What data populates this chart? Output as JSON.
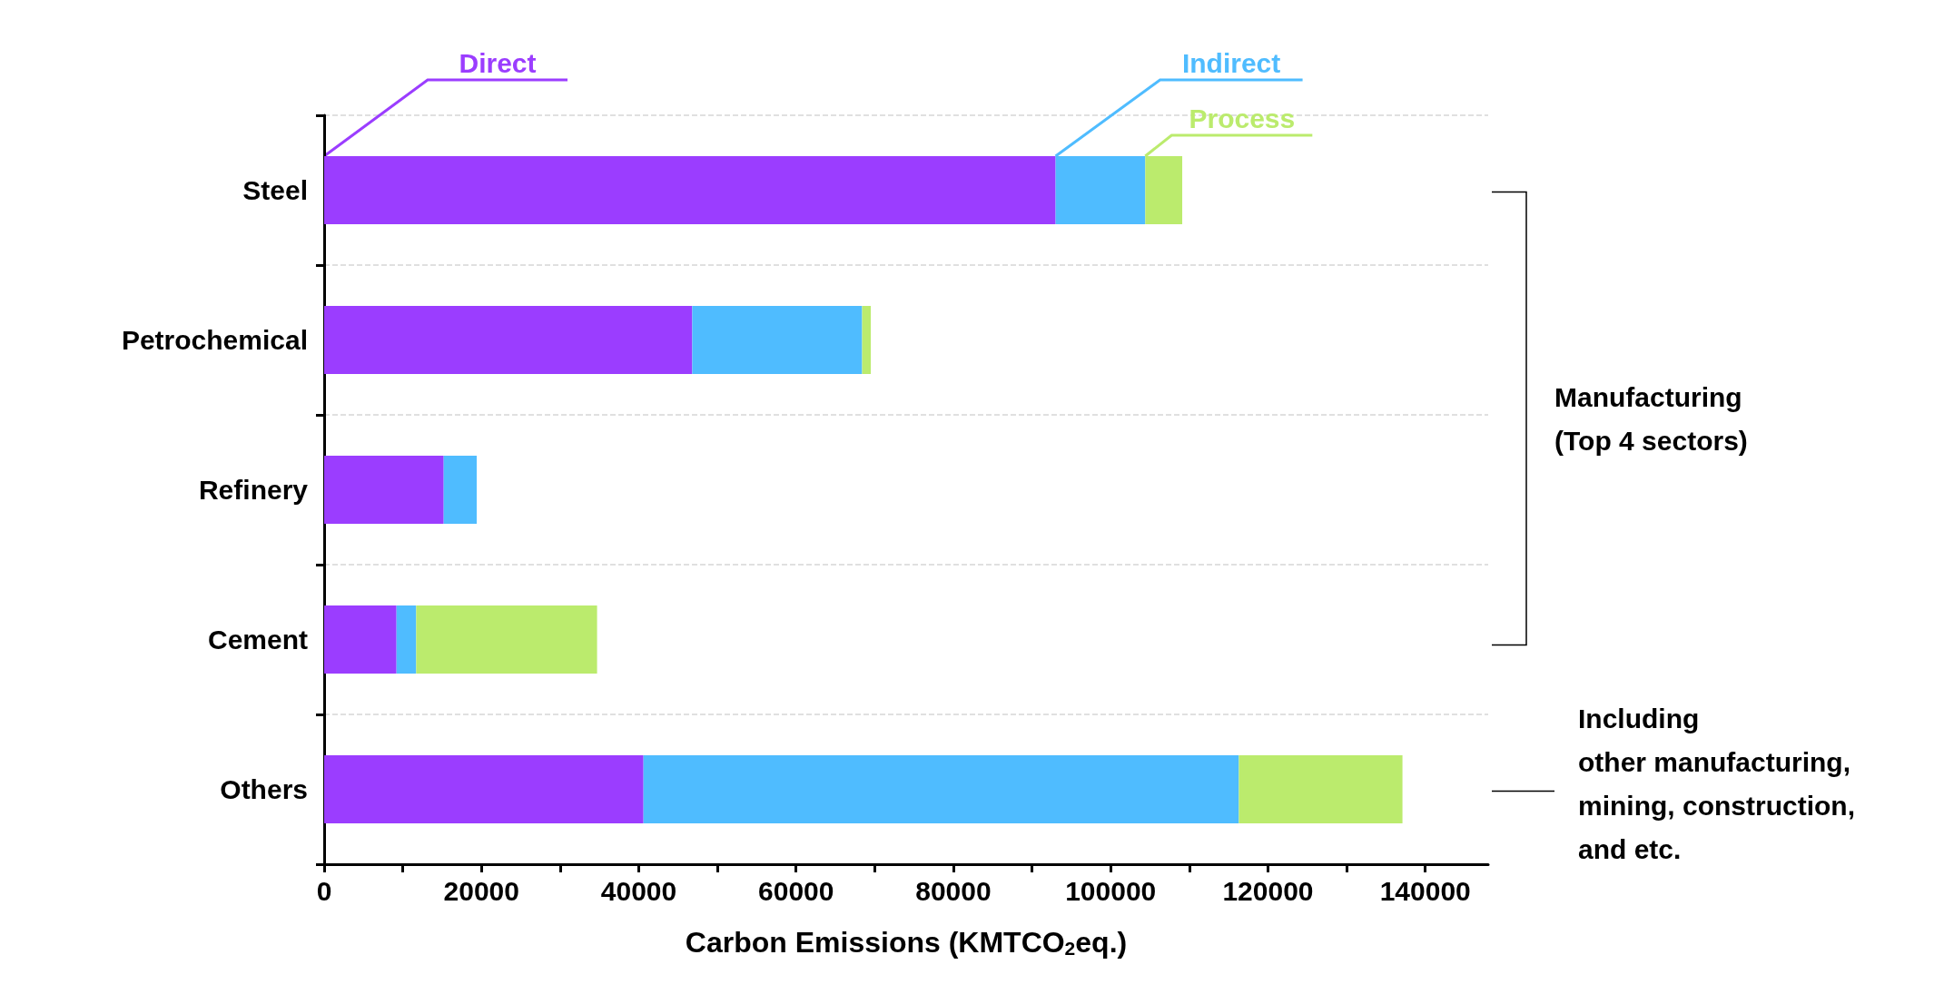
{
  "chart_data": {
    "type": "bar",
    "orientation": "horizontal",
    "stacked": true,
    "categories": [
      "Steel",
      "Petrochemical",
      "Refinery",
      "Cement",
      "Others"
    ],
    "series": [
      {
        "name": "Direct",
        "color": "#9b3dff",
        "values": [
          93000,
          46800,
          15200,
          9200,
          40600
        ]
      },
      {
        "name": "Indirect",
        "color": "#4fbcff",
        "values": [
          11400,
          21600,
          4200,
          2500,
          75700
        ]
      },
      {
        "name": "Process",
        "color": "#bbeb6d",
        "values": [
          4700,
          1100,
          null,
          23000,
          20800
        ]
      }
    ],
    "xlabel": "Carbon Emissions (KMTCO$_{2}$eq.)",
    "xlim": [
      0,
      148000
    ],
    "xticks": [
      0,
      {
        "value": 10000,
        "label": null
      },
      20000,
      {
        "value": 30000,
        "label": null
      },
      40000,
      {
        "value": 50000,
        "label": null
      },
      60000,
      {
        "value": 70000,
        "label": null
      },
      80000,
      {
        "value": 90000,
        "label": null
      },
      100000,
      {
        "value": 110000,
        "label": null
      },
      120000,
      {
        "value": 130000,
        "label": null
      },
      140000
    ],
    "grid": "y",
    "legend": false,
    "annotations": [
      "Manufacturing\n(Top 4 sectors)",
      "Including\nother manufacturing,\nmining, construction,\nand etc."
    ]
  }
}
